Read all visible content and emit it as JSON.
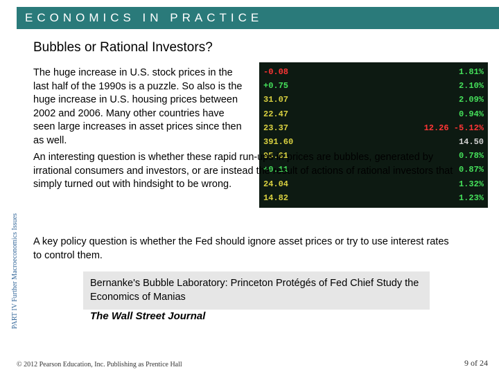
{
  "header": {
    "title": "ECONOMICS IN PRACTICE"
  },
  "subtitle": "Bubbles or Rational Investors?",
  "paragraphs": {
    "p1": "The huge increase in U.S. stock prices in the last half of the 1990s is a puzzle. So also is the huge increase in U.S. housing prices between 2002 and 2006. Many other countries have seen large increases in asset prices since then as well.",
    "p2": "An interesting question is whether these rapid run-ups in prices are bubbles, generated by irrational consumers and investors, or are instead the result of actions of rational investors that simply turned out with hindsight to be wrong.",
    "p3": "A key policy question is whether the Fed should ignore asset prices or try to use interest rates to control them."
  },
  "callout": "Bernanke's Bubble Laboratory: Princeton Protégés of Fed Chief Study the Economics of Manias",
  "journal": "The Wall Street Journal",
  "sidebar": "PART IV Further Macroeconomics Issues",
  "footer": {
    "copyright": "© 2012 Pearson Education, Inc. Publishing as Prentice Hall",
    "page": "9 of 24"
  },
  "stock": {
    "rows": [
      {
        "a": "-0.08",
        "ac": "tk-red",
        "b": "1.81%",
        "bc": "tk-green"
      },
      {
        "a": "+0.75",
        "ac": "tk-green",
        "b": "2.10%",
        "bc": "tk-green"
      },
      {
        "a": "31.07",
        "ac": "tk-yellow",
        "b": "2.09%",
        "bc": "tk-green"
      },
      {
        "a": "22.47",
        "ac": "tk-yellow",
        "b": "0.94%",
        "bc": "tk-green"
      },
      {
        "a": "23.37",
        "ac": "tk-yellow",
        "b": "12.26 -5.12%",
        "bc": "tk-red"
      },
      {
        "a": "391.60",
        "ac": "tk-yellow",
        "b": "14.50",
        "bc": "tk-white"
      },
      {
        "a": "95.61",
        "ac": "tk-yellow",
        "b": "0.78%",
        "bc": "tk-green"
      },
      {
        "a": "+0.11",
        "ac": "tk-green",
        "b": "0.87%",
        "bc": "tk-green"
      },
      {
        "a": "24.04",
        "ac": "tk-yellow",
        "b": "1.32%",
        "bc": "tk-green"
      },
      {
        "a": "14.82",
        "ac": "tk-yellow",
        "b": "1.23%",
        "bc": "tk-green"
      }
    ]
  }
}
